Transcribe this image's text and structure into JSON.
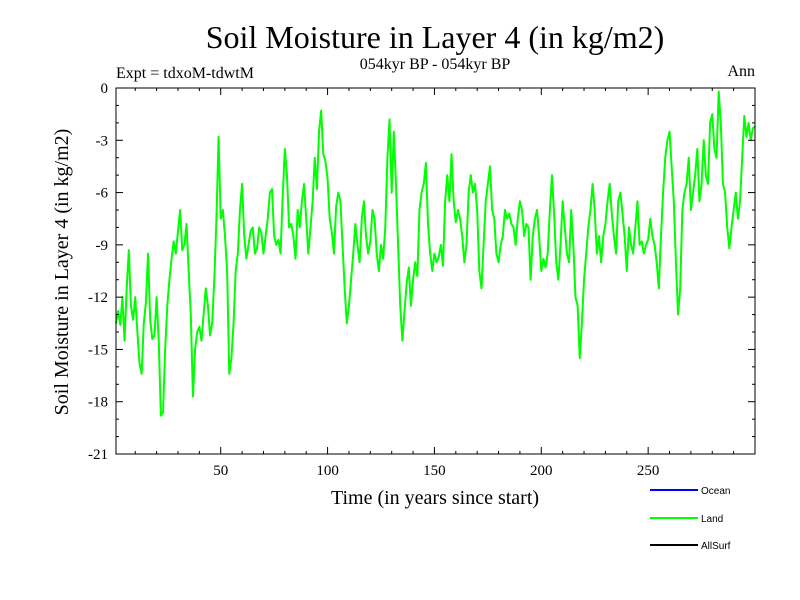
{
  "chart_data": {
    "type": "line",
    "title": "Soil Moisture in Layer 4 (in kg/m2)",
    "subtitle": "054kyr BP - 054kyr BP",
    "experiment_label": "Expt = tdxoM-tdwtM",
    "season_label": "Ann",
    "xlabel": "Time (in years since start)",
    "ylabel": "Soil Moisture in Layer 4 (in kg/m2)",
    "xlim": [
      1,
      300
    ],
    "ylim": [
      -21,
      0
    ],
    "x_ticks": [
      50,
      100,
      150,
      200,
      250
    ],
    "x_tick_labels": [
      "50",
      "100",
      "150",
      "200",
      "250"
    ],
    "y_ticks": [
      0,
      -3,
      -6,
      -9,
      -12,
      -15,
      -18,
      -21
    ],
    "y_tick_labels": [
      "0",
      "-3",
      "-6",
      "-9",
      "-12",
      "-15",
      "-18",
      "-21"
    ],
    "legend": [
      {
        "name": "Ocean",
        "color": "#0000ff"
      },
      {
        "name": "Land",
        "color": "#00ff00"
      },
      {
        "name": "AllSurf",
        "color": "#000000"
      }
    ],
    "series": [
      {
        "name": "Land",
        "color": "#00ff00",
        "x_start": 1,
        "x_step": 1,
        "values": [
          -13.5,
          -12.8,
          -13.6,
          -12.0,
          -14.5,
          -11.5,
          -9.3,
          -12.5,
          -13.3,
          -12.0,
          -14.0,
          -15.8,
          -16.4,
          -13.5,
          -12.3,
          -9.5,
          -13.3,
          -14.4,
          -14.2,
          -12.0,
          -14.5,
          -18.8,
          -18.6,
          -15.0,
          -12.5,
          -11.0,
          -9.8,
          -8.8,
          -9.5,
          -8.2,
          -7.0,
          -9.3,
          -9.0,
          -7.8,
          -10.5,
          -13.0,
          -17.7,
          -15.0,
          -14.0,
          -13.7,
          -14.5,
          -13.0,
          -11.5,
          -12.5,
          -14.2,
          -13.5,
          -11.0,
          -7.5,
          -2.8,
          -7.5,
          -7.0,
          -8.5,
          -10.5,
          -16.4,
          -15.5,
          -13.5,
          -10.5,
          -9.5,
          -7.0,
          -5.5,
          -8.5,
          -9.8,
          -9.0,
          -8.2,
          -8.0,
          -9.5,
          -9.2,
          -8.0,
          -8.3,
          -9.5,
          -8.5,
          -7.5,
          -6.0,
          -5.8,
          -8.5,
          -9.0,
          -8.7,
          -9.5,
          -6.2,
          -3.5,
          -5.0,
          -8.0,
          -7.8,
          -8.5,
          -9.8,
          -7.0,
          -8.0,
          -6.5,
          -5.5,
          -7.5,
          -9.5,
          -8.0,
          -6.5,
          -4.0,
          -5.8,
          -2.5,
          -1.3,
          -3.8,
          -4.2,
          -5.2,
          -7.5,
          -8.3,
          -9.5,
          -6.8,
          -6.0,
          -6.5,
          -9.0,
          -11.5,
          -13.5,
          -12.5,
          -11.0,
          -9.5,
          -7.8,
          -9.0,
          -10.0,
          -7.5,
          -6.5,
          -8.5,
          -9.5,
          -8.8,
          -7.0,
          -7.5,
          -9.5,
          -10.5,
          -9.0,
          -9.8,
          -8.0,
          -4.0,
          -1.8,
          -6.0,
          -2.5,
          -5.5,
          -9.0,
          -12.5,
          -14.5,
          -12.8,
          -11.2,
          -10.3,
          -12.5,
          -11.0,
          -10.0,
          -10.8,
          -7.0,
          -6.0,
          -5.5,
          -4.3,
          -7.8,
          -9.5,
          -10.5,
          -9.5,
          -10.0,
          -9.7,
          -9.0,
          -10.2,
          -6.5,
          -5.0,
          -6.5,
          -3.8,
          -6.5,
          -7.7,
          -7.0,
          -7.5,
          -8.5,
          -10.0,
          -9.0,
          -6.0,
          -5.0,
          -6.0,
          -5.5,
          -7.0,
          -10.5,
          -11.5,
          -9.0,
          -6.5,
          -5.5,
          -4.5,
          -7.0,
          -7.5,
          -9.5,
          -10.0,
          -9.0,
          -8.5,
          -7.0,
          -7.5,
          -7.2,
          -7.8,
          -8.0,
          -9.0,
          -7.5,
          -6.5,
          -7.0,
          -8.5,
          -7.8,
          -8.0,
          -11.0,
          -8.5,
          -7.5,
          -7.0,
          -8.5,
          -10.5,
          -9.8,
          -10.3,
          -9.5,
          -7.0,
          -5.0,
          -7.2,
          -10.0,
          -11.0,
          -9.0,
          -6.5,
          -8.0,
          -9.5,
          -10.0,
          -7.0,
          -9.0,
          -12.0,
          -12.5,
          -15.5,
          -13.5,
          -11.0,
          -9.5,
          -8.0,
          -7.0,
          -5.5,
          -7.0,
          -9.5,
          -8.5,
          -10.0,
          -8.5,
          -7.8,
          -6.5,
          -5.5,
          -7.2,
          -8.5,
          -9.5,
          -6.5,
          -6.0,
          -7.2,
          -8.5,
          -10.5,
          -8.0,
          -9.0,
          -9.5,
          -8.0,
          -6.5,
          -9.0,
          -8.8,
          -9.5,
          -9.0,
          -8.7,
          -7.5,
          -8.5,
          -9.0,
          -10.0,
          -11.5,
          -8.5,
          -6.0,
          -4.0,
          -3.0,
          -2.5,
          -4.5,
          -6.5,
          -10.0,
          -13.0,
          -11.5,
          -7.0,
          -6.0,
          -5.5,
          -4.0,
          -7.0,
          -6.0,
          -5.0,
          -3.5,
          -6.5,
          -5.5,
          -3.0,
          -5.0,
          -5.5,
          -2.0,
          -1.5,
          -3.5,
          -4.0,
          -0.2,
          -2.0,
          -5.5,
          -6.0,
          -8.0,
          -9.2,
          -8.0,
          -7.0,
          -6.0,
          -7.5,
          -6.5,
          -4.0,
          -1.6,
          -2.8,
          -2.0,
          -3.0,
          -2.3,
          -2.2
        ]
      }
    ]
  }
}
